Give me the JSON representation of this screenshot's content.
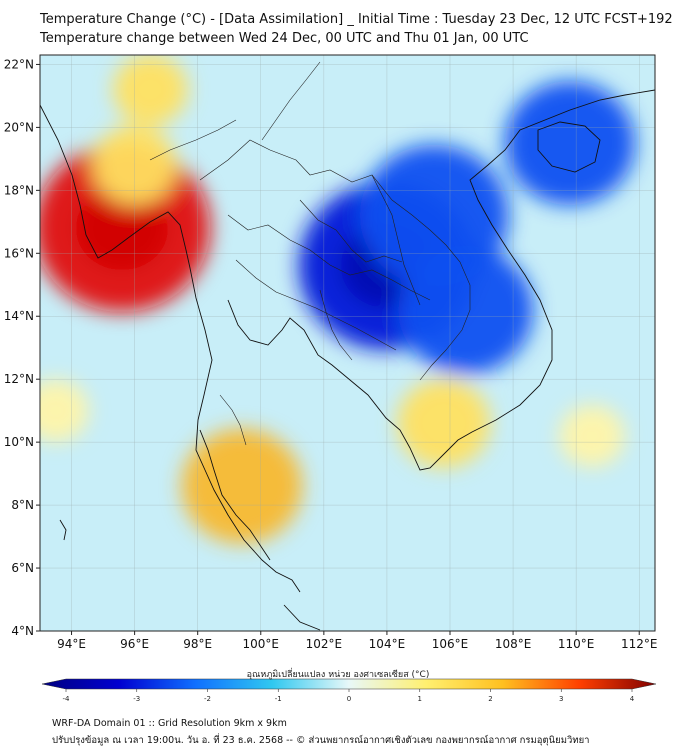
{
  "header": {
    "title_line1": "Temperature Change (°C) - [Data Assimilation] _ Initial Time : Tuesday 23 Dec, 12 UTC FCST+192",
    "title_line2": "Temperature change between Wed 24 Dec, 00 UTC and Thu 01 Jan, 00 UTC"
  },
  "map": {
    "lat_labels": [
      "22°N",
      "20°N",
      "18°N",
      "16°N",
      "14°N",
      "12°N",
      "10°N",
      "8°N",
      "6°N",
      "4°N"
    ],
    "lon_labels": [
      "94°E",
      "96°E",
      "98°E",
      "100°E",
      "102°E",
      "104°E",
      "106°E",
      "108°E",
      "110°E",
      "112°E"
    ],
    "anomalies": [
      {
        "region": "cambodia-laos-thailand",
        "lon": 104.0,
        "lat": 15.6,
        "value": -3.0
      },
      {
        "region": "central-laos",
        "lon": 105.5,
        "lat": 17.2,
        "value": -2.4
      },
      {
        "region": "south-laos",
        "lon": 106.5,
        "lat": 14.2,
        "value": -2.1
      },
      {
        "region": "hainan",
        "lon": 109.8,
        "lat": 19.5,
        "value": -2.0
      },
      {
        "region": "myanmar-coast",
        "lon": 95.6,
        "lat": 16.8,
        "value": 3.0
      },
      {
        "region": "myanmar-west",
        "lon": 96.0,
        "lat": 18.8,
        "value": 1.0
      },
      {
        "region": "upper-myanmar",
        "lon": 96.5,
        "lat": 21.2,
        "value": 0.8
      },
      {
        "region": "south-thailand",
        "lon": 99.4,
        "lat": 8.6,
        "value": 1.8
      },
      {
        "region": "mekong-delta",
        "lon": 105.8,
        "lat": 10.6,
        "value": 1.2
      },
      {
        "region": "south-china-sea",
        "lon": 110.5,
        "lat": 10.2,
        "value": 0.6
      },
      {
        "region": "andaman-sea",
        "lon": 93.5,
        "lat": 11.0,
        "value": 0.6
      }
    ]
  },
  "colorbar": {
    "label": "อุณหภูมิเปลี่ยนแปลง หน่วย องศาเซลเซียส (°C)",
    "ticks": [
      "-4",
      "-3",
      "-2",
      "-1",
      "0",
      "1",
      "2",
      "3",
      "4"
    ],
    "min": -4,
    "max": 4
  },
  "footer": {
    "line1": "WRF-DA Domain 01 :: Grid Resolution 9km x 9km",
    "line2": "ปรับปรุงข้อมูล ณ เวลา 19:00น. วัน อ. ที่ 23 ธ.ค. 2568 -- © ส่วนพยากรณ์อากาศเชิงตัวเลข กองพยากรณ์อากาศ กรมอุตุนิยมวิทยา"
  },
  "colors": {
    "neutral": "#c8eef8",
    "cold_peak": "#0018d8",
    "warm_peak": "#e01010",
    "border": "#111111"
  }
}
